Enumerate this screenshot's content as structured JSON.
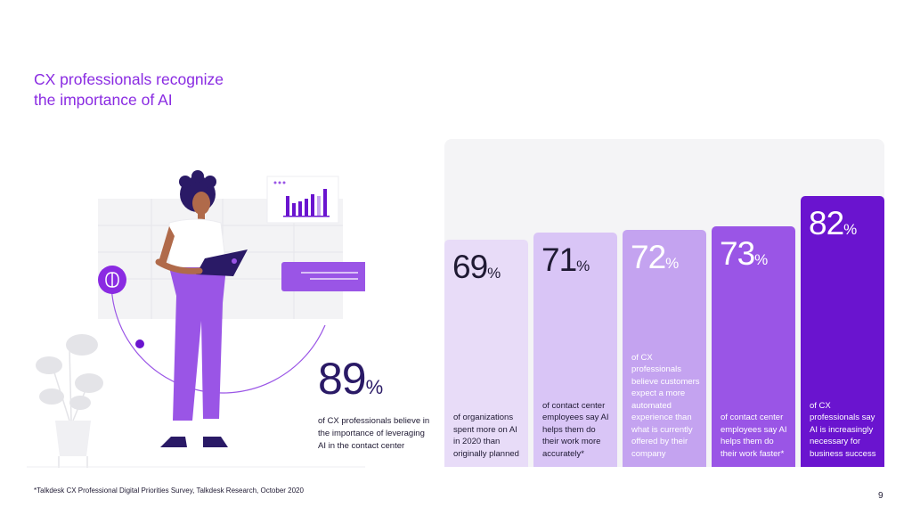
{
  "title": {
    "line1": "CX professionals recognize",
    "line2": "the importance of AI"
  },
  "highlight": {
    "value": "89",
    "unit": "%",
    "description": "of CX professionals believe in the importance of leveraging AI in the contact center"
  },
  "chart_data": {
    "type": "bar",
    "categories": [
      "of organizations spent more on AI in 2020 than originally planned",
      "of contact center employees say AI helps them do their work more accurately*",
      "of CX professionals believe customers expect a more automated experience than what is currently offered by their company",
      "of contact center employees say AI helps them do their work faster*",
      "of CX professionals say AI is increasingly necessary for business success"
    ],
    "values": [
      69,
      71,
      72,
      73,
      82
    ],
    "unit": "%",
    "colors": [
      "#e8dcf8",
      "#d9c5f6",
      "#c4a3f0",
      "#9a55e6",
      "#6a14cf"
    ],
    "text_colors": [
      "#1f1a33",
      "#1f1a33",
      "#ffffff",
      "#ffffff",
      "#ffffff"
    ],
    "ylim": [
      0,
      100
    ]
  },
  "footnote": "*Talkdesk CX Professional Digital Priorities Survey, Talkdesk Research, October 2020",
  "page_number": "9"
}
